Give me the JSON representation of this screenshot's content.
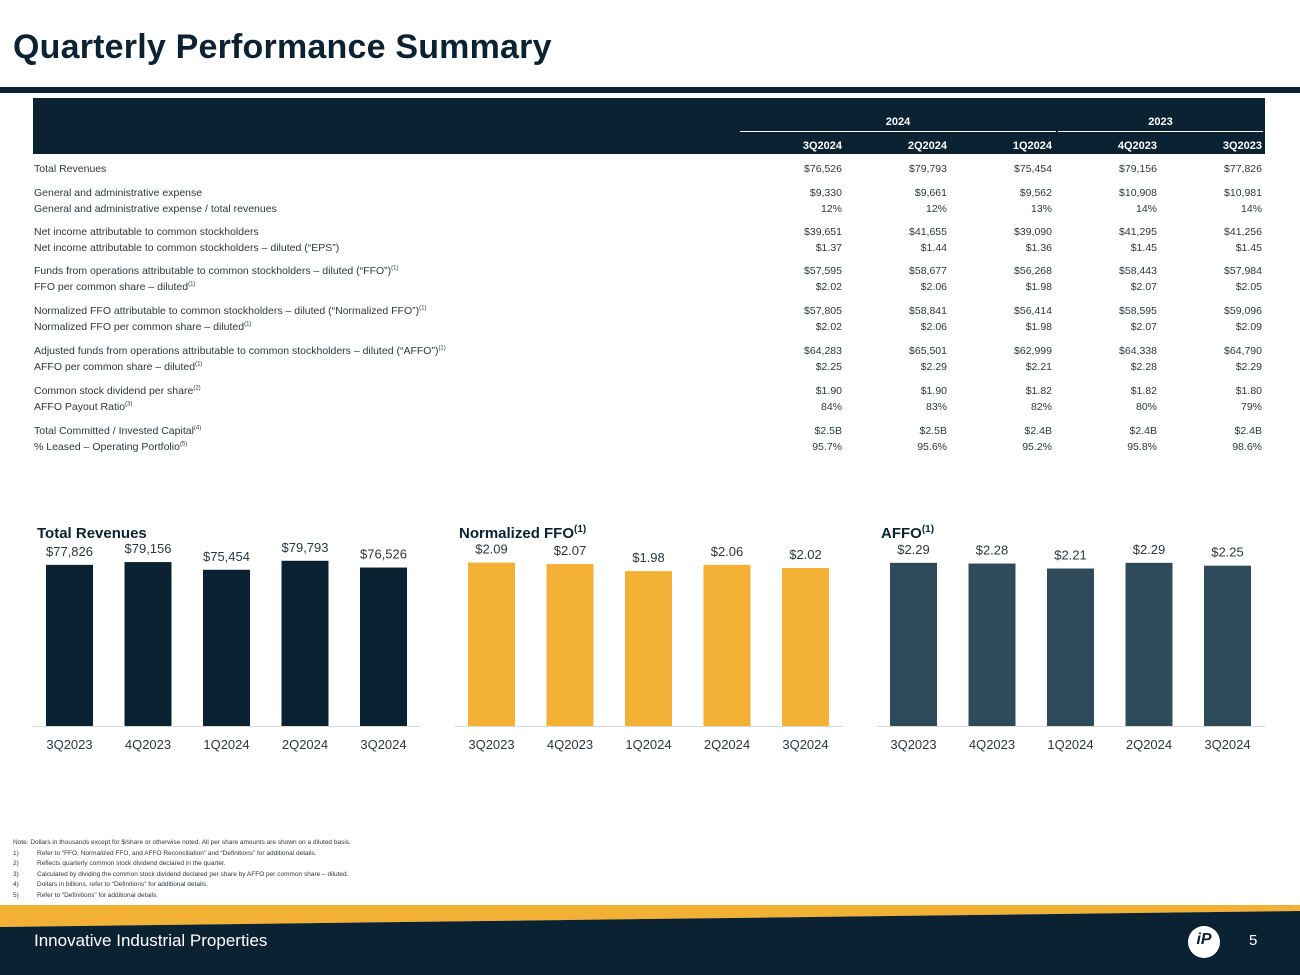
{
  "page": {
    "title": "Quarterly Performance Summary",
    "company": "Innovative Industrial Properties",
    "page_number": "5",
    "logo_text": "iP"
  },
  "table": {
    "year_groups": [
      {
        "label": "2024"
      },
      {
        "label": "2023"
      }
    ],
    "columns": [
      "3Q2024",
      "2Q2024",
      "1Q2024",
      "4Q2023",
      "3Q2023"
    ],
    "rows": [
      {
        "label": "Total Revenues",
        "sup": "",
        "values": [
          "$76,526",
          "$79,793",
          "$75,454",
          "$79,156",
          "$77,826"
        ]
      },
      {
        "label": "General and administrative expense",
        "sup": "",
        "values": [
          "$9,330",
          "$9,661",
          "$9,562",
          "$10,908",
          "$10,981"
        ]
      },
      {
        "label": "General and administrative expense / total revenues",
        "sup": "",
        "values": [
          "12%",
          "12%",
          "13%",
          "14%",
          "14%"
        ]
      },
      {
        "label": "Net income attributable to common stockholders",
        "sup": "",
        "values": [
          "$39,651",
          "$41,655",
          "$39,090",
          "$41,295",
          "$41,256"
        ]
      },
      {
        "label": "Net income attributable to common stockholders – diluted (“EPS”)",
        "sup": "",
        "values": [
          "$1.37",
          "$1.44",
          "$1.36",
          "$1.45",
          "$1.45"
        ]
      },
      {
        "label": "Funds from operations attributable to common stockholders – diluted (“FFO”)",
        "sup": "(1)",
        "values": [
          "$57,595",
          "$58,677",
          "$56,268",
          "$58,443",
          "$57,984"
        ]
      },
      {
        "label": "FFO per common share – diluted",
        "sup": "(1)",
        "values": [
          "$2.02",
          "$2.06",
          "$1.98",
          "$2.07",
          "$2.05"
        ]
      },
      {
        "label": "Normalized FFO attributable to common stockholders – diluted (“Normalized FFO”)",
        "sup": "(1)",
        "values": [
          "$57,805",
          "$58,841",
          "$56,414",
          "$58,595",
          "$59,096"
        ]
      },
      {
        "label": "Normalized FFO per common share – diluted",
        "sup": "(1)",
        "values": [
          "$2.02",
          "$2.06",
          "$1.98",
          "$2.07",
          "$2.09"
        ]
      },
      {
        "label": "Adjusted funds from operations attributable to common stockholders – diluted (“AFFO”)",
        "sup": "(1)",
        "values": [
          "$64,283",
          "$65,501",
          "$62,999",
          "$64,338",
          "$64,790"
        ]
      },
      {
        "label": "AFFO per common share – diluted",
        "sup": "(1)",
        "values": [
          "$2.25",
          "$2.29",
          "$2.21",
          "$2.28",
          "$2.29"
        ]
      },
      {
        "label": "Common stock dividend per share",
        "sup": "(2)",
        "values": [
          "$1.90",
          "$1.90",
          "$1.82",
          "$1.82",
          "$1.80"
        ]
      },
      {
        "label": "AFFO Payout Ratio",
        "sup": "(3)",
        "values": [
          "84%",
          "83%",
          "82%",
          "80%",
          "79%"
        ]
      },
      {
        "label": "Total Committed / Invested Capital",
        "sup": "(4)",
        "values": [
          "$2.5B",
          "$2.5B",
          "$2.4B",
          "$2.4B",
          "$2.4B"
        ]
      },
      {
        "label": "% Leased – Operating Portfolio",
        "sup": "(5)",
        "values": [
          "95.7%",
          "95.6%",
          "95.2%",
          "95.8%",
          "98.6%"
        ]
      }
    ]
  },
  "chart_data": [
    {
      "type": "bar",
      "title": "Total Revenues",
      "title_sup": "",
      "color": "#0b2233",
      "categories": [
        "3Q2023",
        "4Q2023",
        "1Q2024",
        "2Q2024",
        "3Q2024"
      ],
      "values": [
        77826,
        79156,
        75454,
        79793,
        76526
      ],
      "value_labels": [
        "$77,826",
        "$79,156",
        "$75,454",
        "$79,793",
        "$76,526"
      ],
      "xlabel": "",
      "ylabel": "",
      "ylim": [
        0,
        85000
      ]
    },
    {
      "type": "bar",
      "title": "Normalized FFO",
      "title_sup": "(1)",
      "color": "#f2b134",
      "categories": [
        "3Q2023",
        "4Q2023",
        "1Q2024",
        "2Q2024",
        "3Q2024"
      ],
      "values": [
        2.09,
        2.07,
        1.98,
        2.06,
        2.02
      ],
      "value_labels": [
        "$2.09",
        "$2.07",
        "$1.98",
        "$2.06",
        "$2.02"
      ],
      "xlabel": "",
      "ylabel": "",
      "ylim": [
        0,
        2.25
      ]
    },
    {
      "type": "bar",
      "title": "AFFO",
      "title_sup": "(1)",
      "color": "#2f4b5a",
      "categories": [
        "3Q2023",
        "4Q2023",
        "1Q2024",
        "2Q2024",
        "3Q2024"
      ],
      "values": [
        2.29,
        2.28,
        2.21,
        2.29,
        2.25
      ],
      "value_labels": [
        "$2.29",
        "$2.28",
        "$2.21",
        "$2.29",
        "$2.25"
      ],
      "xlabel": "",
      "ylabel": "",
      "ylim": [
        0,
        2.47
      ]
    }
  ],
  "notes": [
    {
      "num": "",
      "text": "Note: Dollars in thousands except for $/share or otherwise noted. All per share amounts are shown on a diluted basis."
    },
    {
      "num": "1)",
      "text": "Refer to “FFO, Normalized FFO, and AFFO Reconciliation” and  “Definitions” for additional details."
    },
    {
      "num": "2)",
      "text": "Reflects quarterly common stock dividend declared in the quarter."
    },
    {
      "num": "3)",
      "text": "Calculated by dividing the common stock dividend declared per share by AFFO per common share – diluted."
    },
    {
      "num": "4)",
      "text": "Dollars in billions, refer to “Definitions” for additional details."
    },
    {
      "num": "5)",
      "text": "Refer to “Definitions” for additional details."
    }
  ],
  "colors": {
    "navy": "#0b2233",
    "gold": "#f2b134",
    "slate": "#2f4b5a"
  }
}
